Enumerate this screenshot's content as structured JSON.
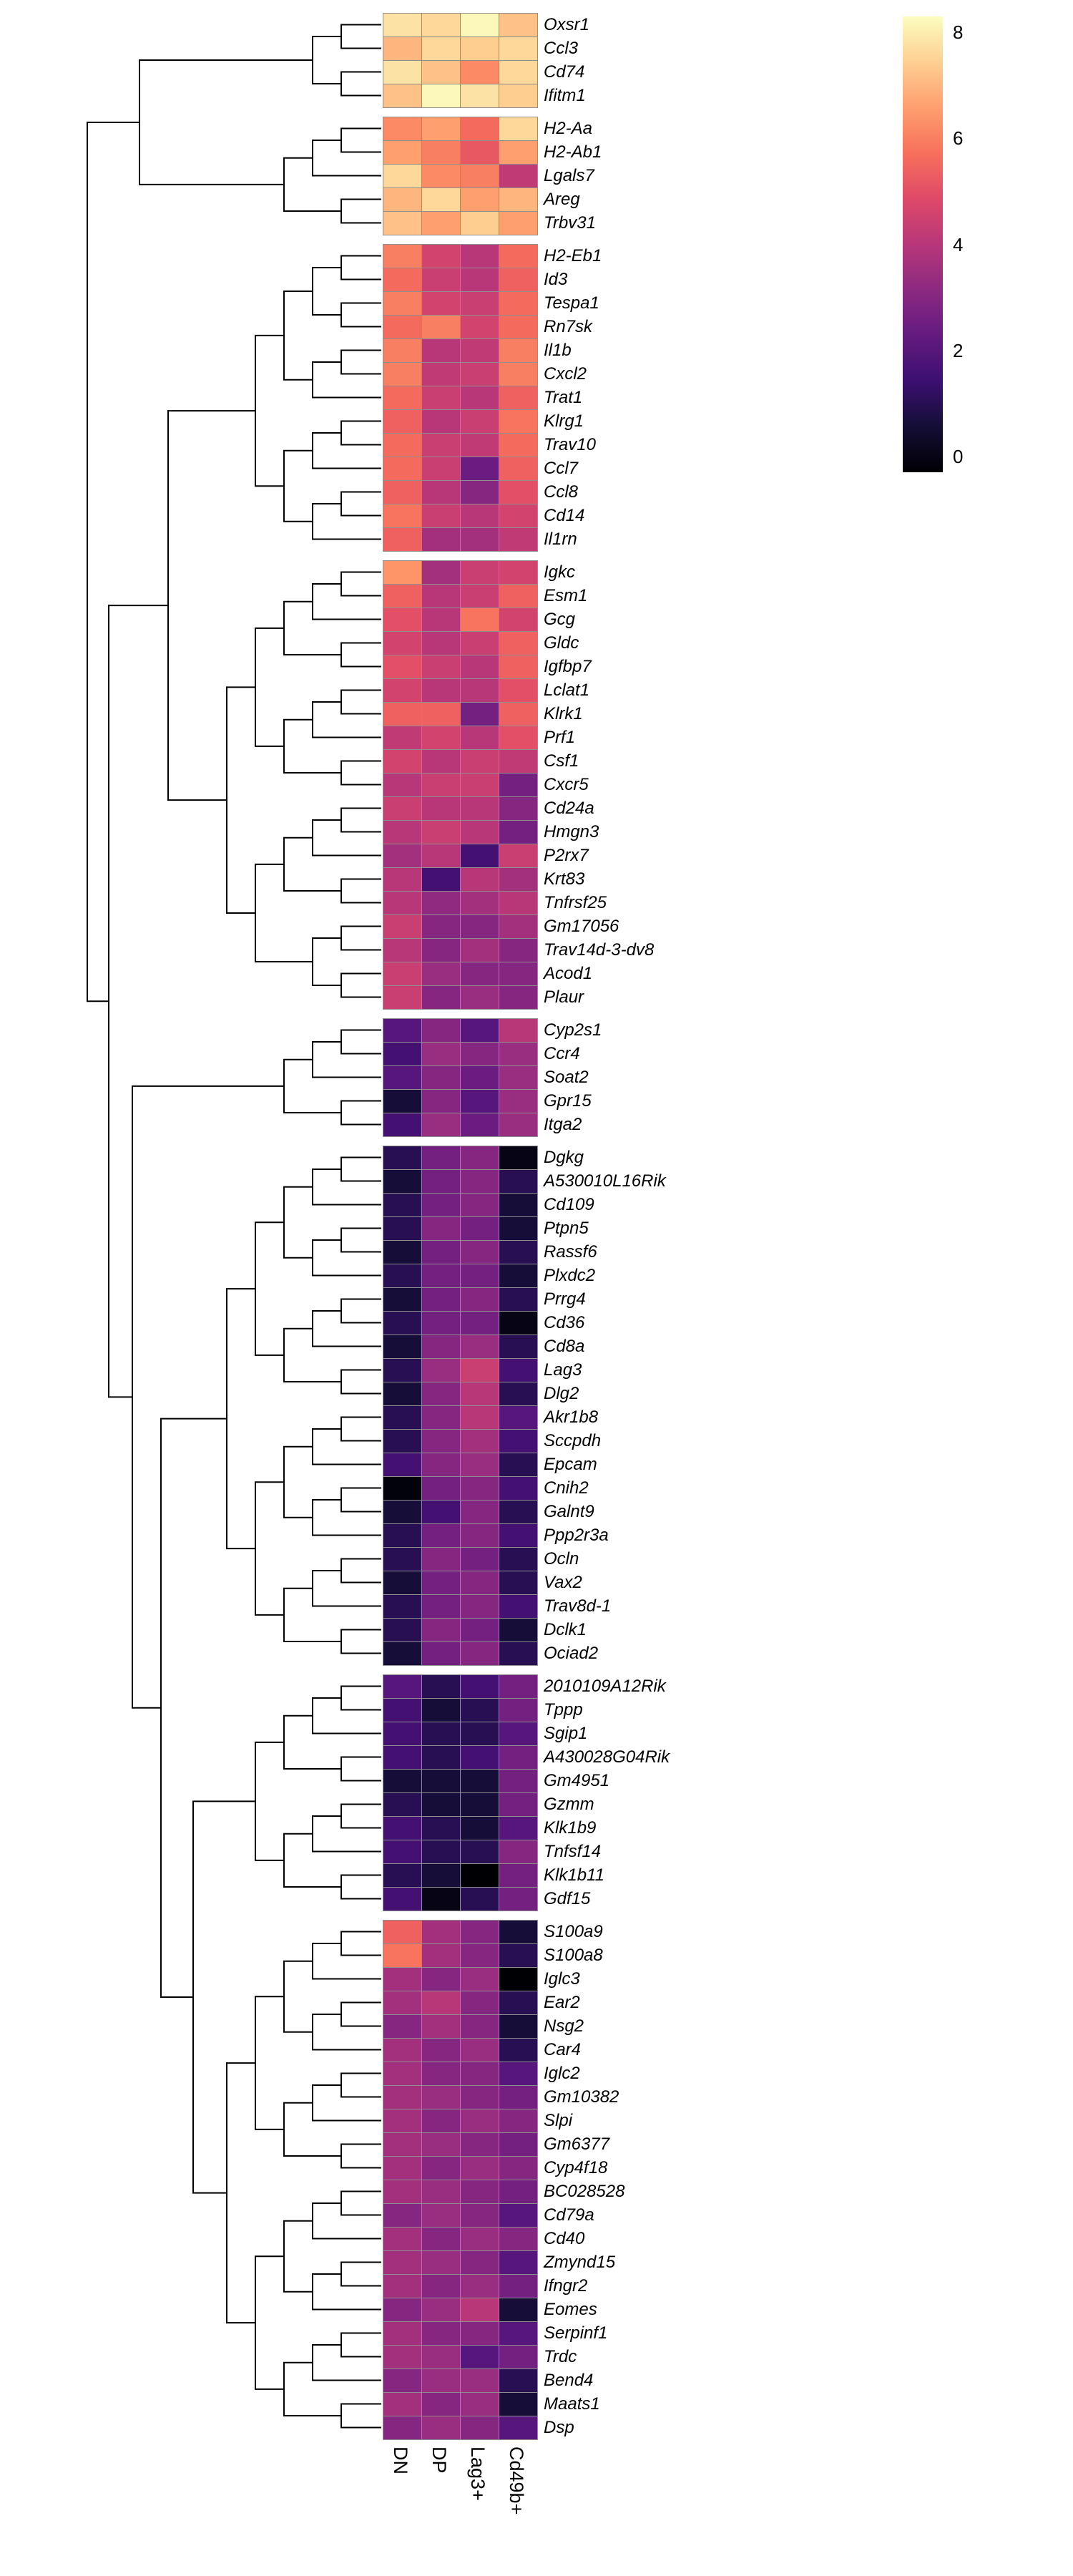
{
  "figure": {
    "background": "#ffffff"
  },
  "chart_data": {
    "type": "heatmap",
    "title": "",
    "columns": [
      "DN",
      "DP",
      "Lag3+",
      "Cd49b+"
    ],
    "colormap": "magma",
    "colormap_stops": [
      "#000004",
      "#140e36",
      "#3b0f70",
      "#641a80",
      "#8c2981",
      "#b73779",
      "#de4968",
      "#f7705c",
      "#fe9f6d",
      "#fecf92",
      "#fcfdbf"
    ],
    "color_domain": [
      -0.3,
      8.3
    ],
    "legend_ticks": [
      8,
      6,
      4,
      2,
      0
    ],
    "row_blocks": [
      {
        "rows": [
          {
            "name": "Oxsr1",
            "values": [
              7.8,
              7.6,
              8.2,
              7.2
            ]
          },
          {
            "name": "Ccl3",
            "values": [
              7.0,
              7.6,
              7.4,
              7.6
            ]
          },
          {
            "name": "Cd74",
            "values": [
              7.8,
              7.2,
              6.2,
              7.6
            ]
          },
          {
            "name": "Ifitm1",
            "values": [
              7.2,
              8.2,
              7.8,
              7.4
            ]
          }
        ]
      },
      {
        "rows": [
          {
            "name": "H2-Aa",
            "values": [
              6.2,
              6.6,
              5.6,
              7.6
            ]
          },
          {
            "name": "H2-Ab1",
            "values": [
              6.6,
              6.0,
              5.2,
              6.6
            ]
          },
          {
            "name": "Lgals7",
            "values": [
              7.6,
              6.2,
              6.0,
              4.2
            ]
          },
          {
            "name": "Areg",
            "values": [
              7.0,
              7.6,
              6.6,
              7.0
            ]
          },
          {
            "name": "Trbv31",
            "values": [
              7.2,
              6.6,
              7.4,
              6.6
            ]
          }
        ]
      },
      {
        "rows": [
          {
            "name": "H2-Eb1",
            "values": [
              6.0,
              4.6,
              4.0,
              5.6
            ]
          },
          {
            "name": "Id3",
            "values": [
              5.6,
              4.4,
              4.0,
              5.4
            ]
          },
          {
            "name": "Tespa1",
            "values": [
              6.0,
              4.6,
              4.4,
              5.6
            ]
          },
          {
            "name": "Rn7sk",
            "values": [
              5.6,
              6.0,
              4.6,
              5.6
            ]
          },
          {
            "name": "Il1b",
            "values": [
              6.0,
              4.0,
              4.2,
              6.0
            ]
          },
          {
            "name": "Cxcl2",
            "values": [
              6.0,
              4.2,
              4.4,
              6.0
            ]
          },
          {
            "name": "Trat1",
            "values": [
              5.6,
              4.4,
              4.0,
              5.4
            ]
          },
          {
            "name": "Klrg1",
            "values": [
              5.4,
              4.0,
              4.4,
              5.8
            ]
          },
          {
            "name": "Trav10",
            "values": [
              5.6,
              4.4,
              4.2,
              5.6
            ]
          },
          {
            "name": "Ccl7",
            "values": [
              5.6,
              4.4,
              2.4,
              5.4
            ]
          },
          {
            "name": "Ccl8",
            "values": [
              5.4,
              4.0,
              3.0,
              5.0
            ]
          },
          {
            "name": "Cd14",
            "values": [
              5.8,
              4.4,
              4.0,
              4.6
            ]
          },
          {
            "name": "Il1rn",
            "values": [
              5.4,
              3.6,
              3.6,
              4.2
            ]
          }
        ]
      },
      {
        "rows": [
          {
            "name": "Igkc",
            "values": [
              6.4,
              3.6,
              4.4,
              4.6
            ]
          },
          {
            "name": "Esm1",
            "values": [
              5.4,
              4.0,
              4.4,
              5.4
            ]
          },
          {
            "name": "Gcg",
            "values": [
              5.0,
              4.0,
              5.8,
              4.6
            ]
          },
          {
            "name": "Gldc",
            "values": [
              4.6,
              4.0,
              4.4,
              5.4
            ]
          },
          {
            "name": "Igfbp7",
            "values": [
              5.0,
              4.4,
              4.0,
              5.4
            ]
          },
          {
            "name": "Lclat1",
            "values": [
              4.6,
              4.0,
              4.0,
              5.0
            ]
          },
          {
            "name": "Klrk1",
            "values": [
              5.4,
              5.4,
              2.6,
              5.4
            ]
          },
          {
            "name": "Prf1",
            "values": [
              4.2,
              4.6,
              4.0,
              5.0
            ]
          },
          {
            "name": "Csf1",
            "values": [
              4.6,
              4.0,
              4.4,
              4.2
            ]
          },
          {
            "name": "Cxcr5",
            "values": [
              4.0,
              4.4,
              4.4,
              2.6
            ]
          },
          {
            "name": "Cd24a",
            "values": [
              4.4,
              4.0,
              4.0,
              3.0
            ]
          },
          {
            "name": "Hmgn3",
            "values": [
              4.0,
              4.4,
              4.0,
              2.6
            ]
          },
          {
            "name": "P2rx7",
            "values": [
              3.6,
              4.0,
              1.6,
              4.4
            ]
          },
          {
            "name": "Krt83",
            "values": [
              4.0,
              1.6,
              4.0,
              3.6
            ]
          },
          {
            "name": "Tnfrsf25",
            "values": [
              4.0,
              3.2,
              3.6,
              4.0
            ]
          },
          {
            "name": "Gm17056",
            "values": [
              4.4,
              3.0,
              3.0,
              3.6
            ]
          },
          {
            "name": "Trav14d-3-dv8",
            "values": [
              4.0,
              3.0,
              3.6,
              3.0
            ]
          },
          {
            "name": "Acod1",
            "values": [
              4.4,
              3.4,
              3.0,
              3.0
            ]
          },
          {
            "name": "Plaur",
            "values": [
              4.4,
              3.0,
              3.4,
              3.0
            ]
          }
        ]
      },
      {
        "rows": [
          {
            "name": "Cyp2s1",
            "values": [
              2.0,
              3.0,
              2.0,
              4.0
            ]
          },
          {
            "name": "Ccr4",
            "values": [
              1.6,
              3.4,
              3.0,
              3.4
            ]
          },
          {
            "name": "Soat2",
            "values": [
              2.0,
              3.0,
              2.4,
              3.4
            ]
          },
          {
            "name": "Gpr15",
            "values": [
              0.6,
              3.0,
              2.0,
              3.4
            ]
          },
          {
            "name": "Itga2",
            "values": [
              1.6,
              3.4,
              2.4,
              3.4
            ]
          }
        ]
      },
      {
        "rows": [
          {
            "name": "Dgkg",
            "values": [
              1.0,
              2.6,
              3.0,
              0.0
            ]
          },
          {
            "name": "A530010L16Rik",
            "values": [
              0.6,
              2.6,
              3.0,
              1.0
            ]
          },
          {
            "name": "Cd109",
            "values": [
              1.0,
              2.6,
              3.0,
              0.6
            ]
          },
          {
            "name": "Ptpn5",
            "values": [
              1.0,
              3.0,
              2.6,
              0.6
            ]
          },
          {
            "name": "Rassf6",
            "values": [
              0.6,
              2.6,
              3.0,
              1.0
            ]
          },
          {
            "name": "Plxdc2",
            "values": [
              1.0,
              2.6,
              2.6,
              0.6
            ]
          },
          {
            "name": "Prrg4",
            "values": [
              0.6,
              2.6,
              3.0,
              1.0
            ]
          },
          {
            "name": "Cd36",
            "values": [
              1.0,
              2.6,
              2.6,
              0.0
            ]
          },
          {
            "name": "Cd8a",
            "values": [
              0.6,
              3.0,
              3.4,
              1.0
            ]
          },
          {
            "name": "Lag3",
            "values": [
              1.0,
              3.4,
              4.4,
              1.6
            ]
          },
          {
            "name": "Dlg2",
            "values": [
              0.6,
              3.0,
              4.0,
              1.0
            ]
          },
          {
            "name": "Akr1b8",
            "values": [
              1.0,
              3.0,
              4.0,
              2.0
            ]
          },
          {
            "name": "Sccpdh",
            "values": [
              1.0,
              3.0,
              3.6,
              1.6
            ]
          },
          {
            "name": "Epcam",
            "values": [
              1.6,
              3.0,
              3.4,
              1.0
            ]
          },
          {
            "name": "Cnih2",
            "values": [
              -0.2,
              2.6,
              3.0,
              1.6
            ]
          },
          {
            "name": "Galnt9",
            "values": [
              0.6,
              1.6,
              3.0,
              1.0
            ]
          },
          {
            "name": "Ppp2r3a",
            "values": [
              1.0,
              2.6,
              3.0,
              1.6
            ]
          },
          {
            "name": "Ocln",
            "values": [
              1.0,
              3.0,
              2.6,
              1.0
            ]
          },
          {
            "name": "Vax2",
            "values": [
              0.6,
              2.6,
              3.0,
              1.0
            ]
          },
          {
            "name": "Trav8d-1",
            "values": [
              1.0,
              2.6,
              3.0,
              1.6
            ]
          },
          {
            "name": "Dclk1",
            "values": [
              1.0,
              3.0,
              2.6,
              0.6
            ]
          },
          {
            "name": "Ociad2",
            "values": [
              0.6,
              2.6,
              3.0,
              1.0
            ]
          }
        ]
      },
      {
        "rows": [
          {
            "name": "2010109A12Rik",
            "values": [
              2.0,
              1.0,
              1.6,
              2.6
            ]
          },
          {
            "name": "Tppp",
            "values": [
              1.6,
              0.6,
              1.0,
              2.6
            ]
          },
          {
            "name": "Sgip1",
            "values": [
              1.6,
              1.0,
              1.0,
              2.0
            ]
          },
          {
            "name": "A430028G04Rik",
            "values": [
              1.6,
              1.0,
              1.6,
              2.6
            ]
          },
          {
            "name": "Gm4951",
            "values": [
              0.6,
              0.6,
              0.6,
              2.6
            ]
          },
          {
            "name": "Gzmm",
            "values": [
              1.0,
              0.6,
              0.6,
              2.6
            ]
          },
          {
            "name": "Klk1b9",
            "values": [
              1.6,
              1.0,
              0.6,
              2.0
            ]
          },
          {
            "name": "Tnfsf14",
            "values": [
              1.6,
              1.0,
              1.0,
              3.0
            ]
          },
          {
            "name": "Klk1b11",
            "values": [
              1.0,
              0.6,
              -0.3,
              2.6
            ]
          },
          {
            "name": "Gdf15",
            "values": [
              1.6,
              0.0,
              1.0,
              2.6
            ]
          }
        ]
      },
      {
        "rows": [
          {
            "name": "S100a9",
            "values": [
              5.4,
              3.6,
              3.0,
              0.6
            ]
          },
          {
            "name": "S100a8",
            "values": [
              5.8,
              3.6,
              3.0,
              1.0
            ]
          },
          {
            "name": "Iglc3",
            "values": [
              3.6,
              3.0,
              3.4,
              -0.3
            ]
          },
          {
            "name": "Ear2",
            "values": [
              3.6,
              4.0,
              3.0,
              1.0
            ]
          },
          {
            "name": "Nsg2",
            "values": [
              3.0,
              3.6,
              3.0,
              0.6
            ]
          },
          {
            "name": "Car4",
            "values": [
              3.6,
              3.0,
              3.4,
              1.0
            ]
          },
          {
            "name": "Iglc2",
            "values": [
              3.6,
              3.0,
              3.0,
              2.0
            ]
          },
          {
            "name": "Gm10382",
            "values": [
              3.6,
              3.4,
              3.0,
              2.6
            ]
          },
          {
            "name": "Slpi",
            "values": [
              3.6,
              3.0,
              3.4,
              3.0
            ]
          },
          {
            "name": "Gm6377",
            "values": [
              3.6,
              3.4,
              3.0,
              2.6
            ]
          },
          {
            "name": "Cyp4f18",
            "values": [
              3.6,
              3.0,
              3.4,
              3.0
            ]
          },
          {
            "name": "BC028528",
            "values": [
              3.6,
              3.4,
              3.0,
              2.6
            ]
          },
          {
            "name": "Cd79a",
            "values": [
              3.0,
              3.4,
              3.0,
              2.0
            ]
          },
          {
            "name": "Cd40",
            "values": [
              3.6,
              3.0,
              3.4,
              3.0
            ]
          },
          {
            "name": "Zmynd15",
            "values": [
              3.6,
              3.4,
              3.0,
              2.0
            ]
          },
          {
            "name": "Ifngr2",
            "values": [
              3.6,
              3.0,
              3.4,
              2.6
            ]
          },
          {
            "name": "Eomes",
            "values": [
              3.0,
              3.4,
              4.0,
              0.6
            ]
          },
          {
            "name": "Serpinf1",
            "values": [
              3.6,
              3.0,
              3.0,
              2.0
            ]
          },
          {
            "name": "Trdc",
            "values": [
              3.6,
              3.4,
              2.0,
              2.6
            ]
          },
          {
            "name": "Bend4",
            "values": [
              3.0,
              3.4,
              3.4,
              1.0
            ]
          },
          {
            "name": "Maats1",
            "values": [
              3.6,
              3.0,
              3.4,
              0.6
            ]
          },
          {
            "name": "Dsp",
            "values": [
              3.0,
              3.4,
              3.0,
              2.0
            ]
          }
        ]
      }
    ]
  }
}
